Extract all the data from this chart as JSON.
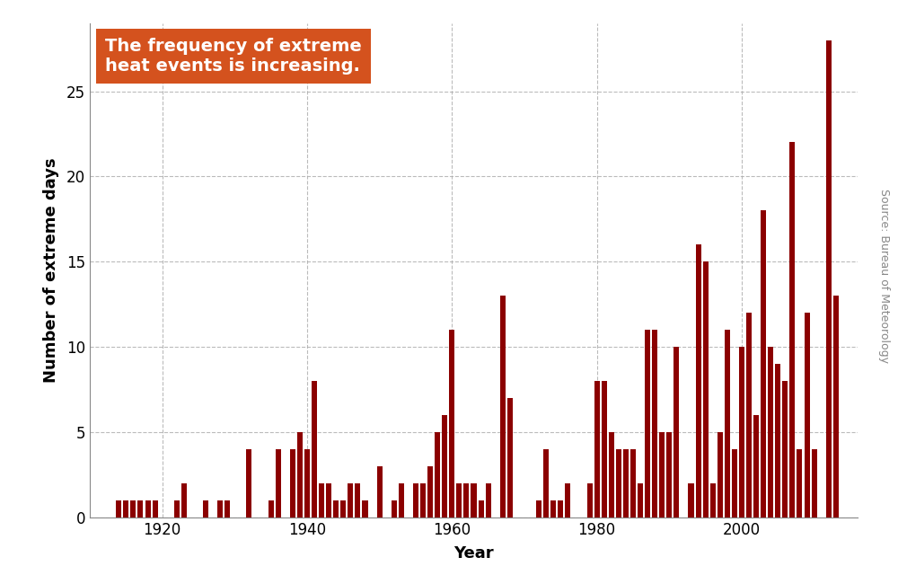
{
  "years": [
    1914,
    1915,
    1916,
    1917,
    1918,
    1919,
    1922,
    1923,
    1926,
    1928,
    1929,
    1932,
    1935,
    1936,
    1938,
    1939,
    1940,
    1941,
    1942,
    1943,
    1944,
    1945,
    1946,
    1947,
    1948,
    1950,
    1952,
    1953,
    1955,
    1956,
    1957,
    1958,
    1959,
    1960,
    1961,
    1962,
    1963,
    1964,
    1965,
    1967,
    1968,
    1972,
    1973,
    1974,
    1975,
    1976,
    1979,
    1980,
    1981,
    1982,
    1983,
    1984,
    1985,
    1986,
    1987,
    1988,
    1989,
    1990,
    1991,
    1993,
    1994,
    1995,
    1996,
    1997,
    1998,
    1999,
    2000,
    2001,
    2002,
    2003,
    2004,
    2005,
    2006,
    2007,
    2008,
    2009,
    2010,
    2012,
    2013
  ],
  "values": [
    1,
    1,
    1,
    1,
    1,
    1,
    1,
    2,
    1,
    1,
    1,
    4,
    1,
    4,
    4,
    5,
    4,
    8,
    2,
    2,
    1,
    1,
    2,
    2,
    1,
    3,
    1,
    2,
    2,
    2,
    3,
    5,
    6,
    11,
    2,
    2,
    2,
    1,
    2,
    13,
    7,
    1,
    4,
    1,
    1,
    2,
    2,
    8,
    8,
    5,
    4,
    4,
    4,
    2,
    11,
    11,
    5,
    5,
    10,
    2,
    16,
    15,
    2,
    5,
    11,
    4,
    10,
    12,
    6,
    18,
    10,
    9,
    8,
    22,
    4,
    12,
    4,
    28,
    13
  ],
  "bar_color": "#8b0000",
  "background_color": "#ffffff",
  "annotation_line1": "The frequency of extreme",
  "annotation_line2": "heat events is increasing.",
  "annotation_bg": "#d4521e",
  "annotation_text_color": "#ffffff",
  "xlabel": "Year",
  "ylabel": "Number of extreme days",
  "source_text": "Source: Bureau of Meteorology",
  "xlim": [
    1910,
    2016
  ],
  "ylim": [
    0,
    29
  ],
  "yticks": [
    0,
    5,
    10,
    15,
    20,
    25
  ],
  "xticks": [
    1920,
    1940,
    1960,
    1980,
    2000
  ],
  "axis_fontsize": 13,
  "tick_fontsize": 12,
  "annotation_fontsize": 14
}
